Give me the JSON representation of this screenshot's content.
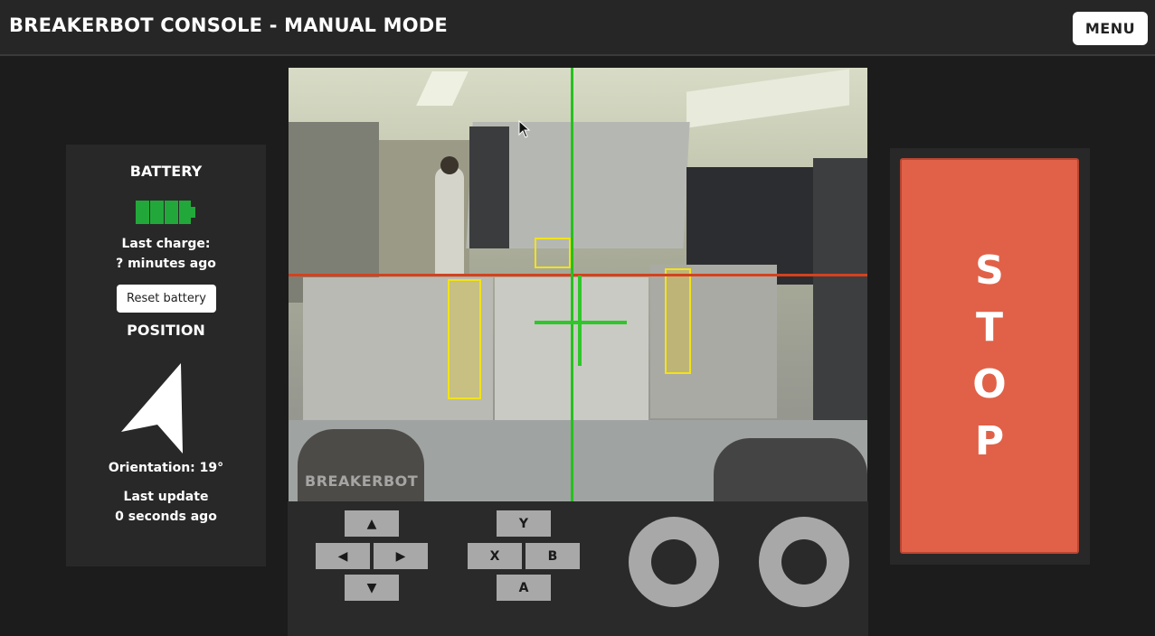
{
  "header": {
    "title": "BREAKERBOT CONSOLE - MANUAL MODE",
    "menu_label": "MENU"
  },
  "battery": {
    "title": "BATTERY",
    "level": 1.0,
    "color": "#22a83a",
    "last_charge_label": "Last charge:",
    "last_charge_value": "? minutes ago",
    "reset_label": "Reset battery"
  },
  "position": {
    "title": "POSITION",
    "orientation_text": "Orientation: 19°",
    "orientation_deg": 19,
    "last_update_label": "Last update",
    "last_update_value": "0 seconds ago"
  },
  "camera": {
    "watermark": "BREAKERBOT",
    "crosshair_vertical_color": "#24c21c",
    "crosshair_horizontal_color": "#d4421e",
    "detection_color": "#f2e21a"
  },
  "dpad": {
    "up": "▲",
    "left": "◀",
    "right": "▶",
    "down": "▼"
  },
  "face_buttons": {
    "y": "Y",
    "x": "X",
    "b": "B",
    "a": "A"
  },
  "stop": {
    "letters": [
      "S",
      "T",
      "O",
      "P"
    ],
    "color": "#e06148"
  }
}
